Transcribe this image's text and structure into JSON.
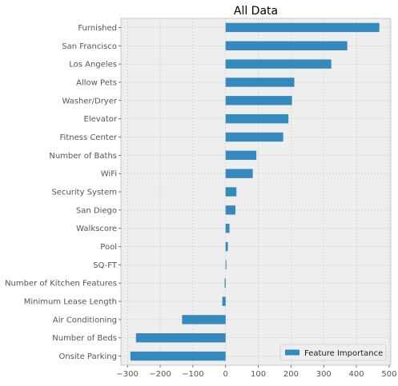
{
  "chart_data": {
    "type": "bar",
    "orientation": "horizontal",
    "title": "All Data",
    "xlabel": "",
    "ylabel": "",
    "categories": [
      "Furnished",
      "San Francisco",
      "Los Angeles",
      "Allow Pets",
      "Washer/Dryer",
      "Elevator",
      "Fitness Center",
      "Number of Baths",
      "WiFi",
      "Security System",
      "San Diego",
      "Walkscore",
      "Pool",
      "SQ-FT",
      "Number of Kitchen Features",
      "Minimum Lease Length",
      "Air Conditioning",
      "Number of Beds",
      "Onsite Parking"
    ],
    "series": [
      {
        "name": "Feature Importance",
        "color": "#348abd",
        "values": [
          470,
          372,
          323,
          210,
          203,
          192,
          176,
          94,
          83,
          33,
          30,
          12,
          7,
          2,
          -3,
          -10,
          -133,
          -274,
          -291
        ]
      }
    ],
    "xlim": [
      -320,
      505
    ],
    "xticks": [
      -300,
      -200,
      -100,
      0,
      100,
      200,
      300,
      400,
      500
    ],
    "xtick_labels": [
      "−300",
      "−200",
      "−100",
      "0",
      "100",
      "200",
      "300",
      "400",
      "500"
    ],
    "grid": true,
    "legend": "bottom-right",
    "colors": {
      "plot_background": "#eeeeee",
      "grid": "#c4c4c4",
      "bar": "#348abd",
      "text": "#555555",
      "title": "#000000"
    }
  }
}
